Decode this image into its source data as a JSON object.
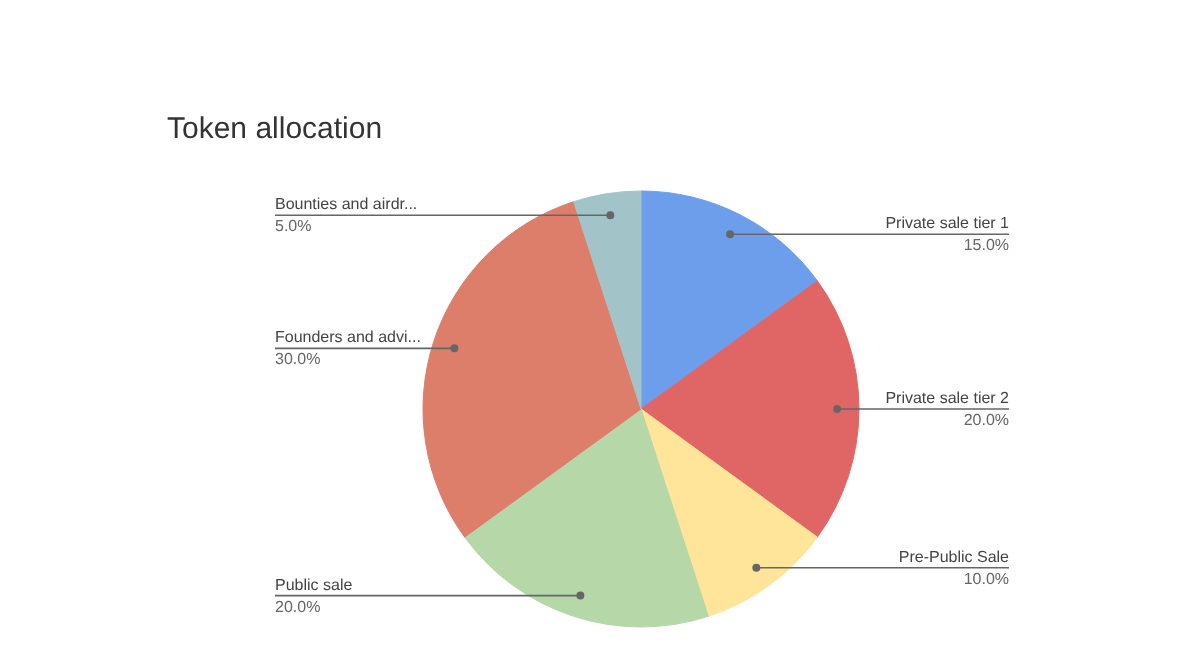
{
  "chart_data": {
    "type": "pie",
    "title": "Token allocation",
    "categories": [
      "Private sale tier 1",
      "Private sale tier 2",
      "Pre-Public Sale",
      "Public sale",
      "Founders and advi...",
      "Bounties and airdr..."
    ],
    "values": [
      15,
      20,
      10,
      20,
      30,
      5
    ],
    "value_labels": [
      "15.0%",
      "20.0%",
      "10.0%",
      "20.0%",
      "30.0%",
      "5.0%"
    ],
    "colors": [
      "#6d9eeb",
      "#e06666",
      "#ffe599",
      "#b6d7a8",
      "#dd7e6b",
      "#a2c4c9"
    ]
  }
}
